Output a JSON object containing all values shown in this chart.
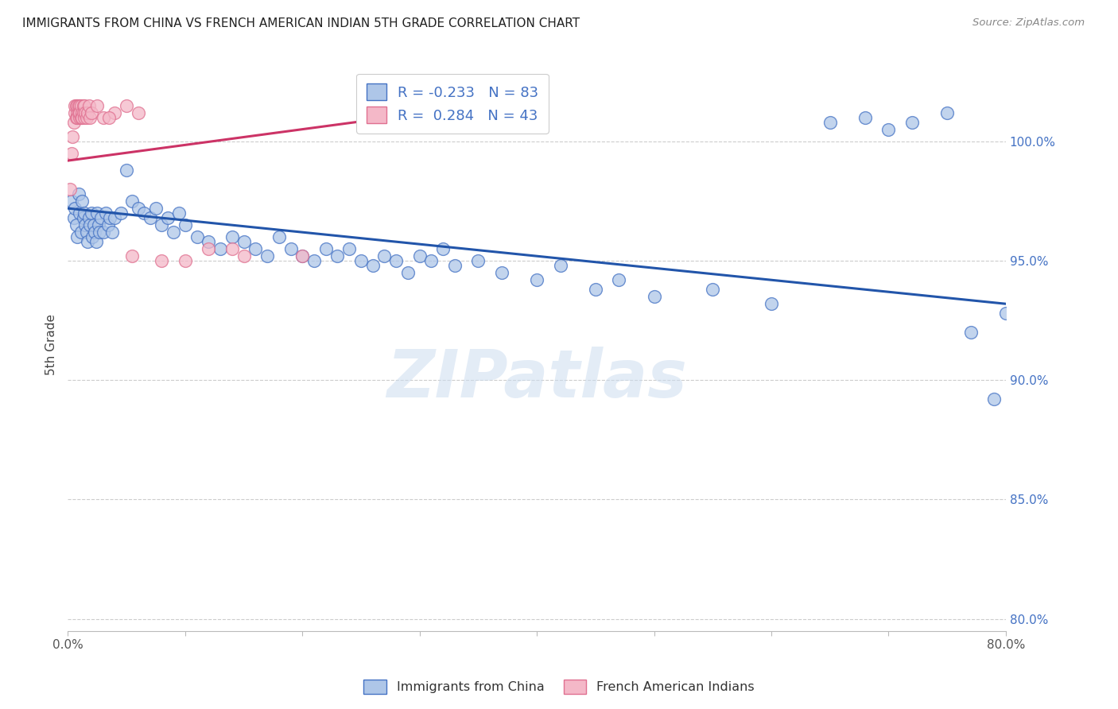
{
  "title": "IMMIGRANTS FROM CHINA VS FRENCH AMERICAN INDIAN 5TH GRADE CORRELATION CHART",
  "source": "Source: ZipAtlas.com",
  "ylabel": "5th Grade",
  "xlim": [
    0.0,
    80.0
  ],
  "ylim": [
    79.5,
    103.5
  ],
  "x_tick_positions": [
    0,
    10,
    20,
    30,
    40,
    50,
    60,
    70,
    80
  ],
  "x_tick_labels": [
    "0.0%",
    "",
    "",
    "",
    "",
    "",
    "",
    "",
    "80.0%"
  ],
  "y_tick_positions": [
    80,
    85,
    90,
    95,
    100
  ],
  "y_tick_labels": [
    "80.0%",
    "85.0%",
    "90.0%",
    "95.0%",
    "100.0%"
  ],
  "blue_R": -0.233,
  "blue_N": 83,
  "pink_R": 0.284,
  "pink_N": 43,
  "blue_color": "#aec6e8",
  "pink_color": "#f4b8c8",
  "blue_edge_color": "#4472c4",
  "pink_edge_color": "#e07090",
  "blue_line_color": "#2255aa",
  "pink_line_color": "#cc3366",
  "legend_label_blue": "Immigrants from China",
  "legend_label_pink": "French American Indians",
  "watermark": "ZIPatlas",
  "blue_line_x0": 0,
  "blue_line_x1": 80,
  "blue_line_y0": 97.2,
  "blue_line_y1": 93.2,
  "pink_line_x0": 0,
  "pink_line_x1": 35,
  "pink_line_y0": 99.2,
  "pink_line_y1": 101.5,
  "blue_scatter_x": [
    0.3,
    0.5,
    0.6,
    0.7,
    0.8,
    0.9,
    1.0,
    1.1,
    1.2,
    1.3,
    1.4,
    1.5,
    1.6,
    1.7,
    1.8,
    1.9,
    2.0,
    2.1,
    2.2,
    2.3,
    2.4,
    2.5,
    2.6,
    2.7,
    2.8,
    3.0,
    3.2,
    3.4,
    3.6,
    3.8,
    4.0,
    4.5,
    5.0,
    5.5,
    6.0,
    6.5,
    7.0,
    7.5,
    8.0,
    8.5,
    9.0,
    9.5,
    10.0,
    11.0,
    12.0,
    13.0,
    14.0,
    15.0,
    16.0,
    17.0,
    18.0,
    19.0,
    20.0,
    21.0,
    22.0,
    23.0,
    24.0,
    25.0,
    26.0,
    27.0,
    28.0,
    29.0,
    30.0,
    31.0,
    32.0,
    33.0,
    35.0,
    37.0,
    40.0,
    42.0,
    45.0,
    47.0,
    50.0,
    55.0,
    60.0,
    65.0,
    68.0,
    70.0,
    72.0,
    75.0,
    77.0,
    79.0,
    80.0
  ],
  "blue_scatter_y": [
    97.5,
    96.8,
    97.2,
    96.5,
    96.0,
    97.8,
    97.0,
    96.2,
    97.5,
    96.8,
    97.0,
    96.5,
    96.2,
    95.8,
    96.8,
    96.5,
    97.0,
    96.0,
    96.5,
    96.2,
    95.8,
    97.0,
    96.5,
    96.2,
    96.8,
    96.2,
    97.0,
    96.5,
    96.8,
    96.2,
    96.8,
    97.0,
    98.8,
    97.5,
    97.2,
    97.0,
    96.8,
    97.2,
    96.5,
    96.8,
    96.2,
    97.0,
    96.5,
    96.0,
    95.8,
    95.5,
    96.0,
    95.8,
    95.5,
    95.2,
    96.0,
    95.5,
    95.2,
    95.0,
    95.5,
    95.2,
    95.5,
    95.0,
    94.8,
    95.2,
    95.0,
    94.5,
    95.2,
    95.0,
    95.5,
    94.8,
    95.0,
    94.5,
    94.2,
    94.8,
    93.8,
    94.2,
    93.5,
    93.8,
    93.2,
    100.8,
    101.0,
    100.5,
    100.8,
    101.2,
    92.0,
    89.2,
    92.8
  ],
  "pink_scatter_x": [
    0.2,
    0.3,
    0.4,
    0.5,
    0.6,
    0.6,
    0.7,
    0.7,
    0.8,
    0.8,
    0.8,
    0.9,
    0.9,
    1.0,
    1.0,
    1.0,
    1.1,
    1.1,
    1.2,
    1.2,
    1.3,
    1.3,
    1.4,
    1.4,
    1.5,
    1.6,
    1.7,
    1.8,
    1.9,
    2.0,
    2.5,
    3.0,
    4.0,
    5.0,
    6.0,
    3.5,
    5.5,
    8.0,
    12.0,
    15.0,
    10.0,
    14.0,
    20.0
  ],
  "pink_scatter_y": [
    98.0,
    99.5,
    100.2,
    100.8,
    101.2,
    101.5,
    101.0,
    101.5,
    101.2,
    101.5,
    101.0,
    101.2,
    101.5,
    101.0,
    101.5,
    101.2,
    101.0,
    101.5,
    101.2,
    101.0,
    101.5,
    101.2,
    101.0,
    101.5,
    101.2,
    101.0,
    101.2,
    101.5,
    101.0,
    101.2,
    101.5,
    101.0,
    101.2,
    101.5,
    101.2,
    101.0,
    95.2,
    95.0,
    95.5,
    95.2,
    95.0,
    95.5,
    95.2
  ]
}
